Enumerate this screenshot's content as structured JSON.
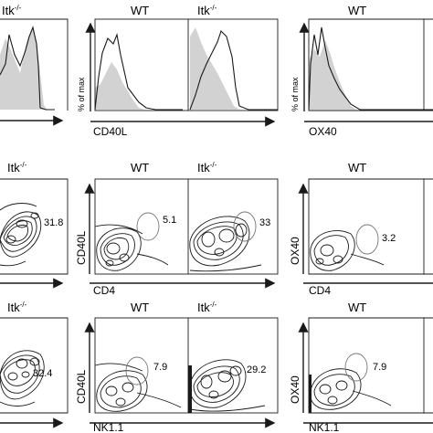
{
  "figure": {
    "row1": {
      "titles": [
        "Itk",
        "WT",
        "Itk",
        "WT"
      ],
      "title_sup": [
        "-/-",
        "",
        "-/-",
        ""
      ],
      "xlabels": [
        "CD40L",
        "OX40"
      ],
      "ylabel": "% of max"
    },
    "row2": {
      "titles": [
        "Itk",
        "WT",
        "Itk",
        "WT"
      ],
      "title_sup": [
        "-/-",
        "",
        "-/-",
        ""
      ],
      "gate_percents": [
        "31.8",
        "5.1",
        "33",
        "3.2"
      ],
      "ylabels": [
        "CD40L",
        "OX40"
      ],
      "xlabels": [
        "CD4",
        "CD4"
      ]
    },
    "row3": {
      "titles": [
        "Itk",
        "WT",
        "Itk",
        "WT"
      ],
      "title_sup": [
        "-/-",
        "",
        "-/-",
        ""
      ],
      "gate_percents": [
        "32.4",
        "7.9",
        "29.2",
        "7.9"
      ],
      "ylabels": [
        "CD40L",
        "OX40"
      ],
      "xlabels": [
        "NK1.1",
        "NK1.1"
      ]
    }
  },
  "colors": {
    "ink": "#1a1a1a",
    "fill": "#d2d2d2"
  }
}
